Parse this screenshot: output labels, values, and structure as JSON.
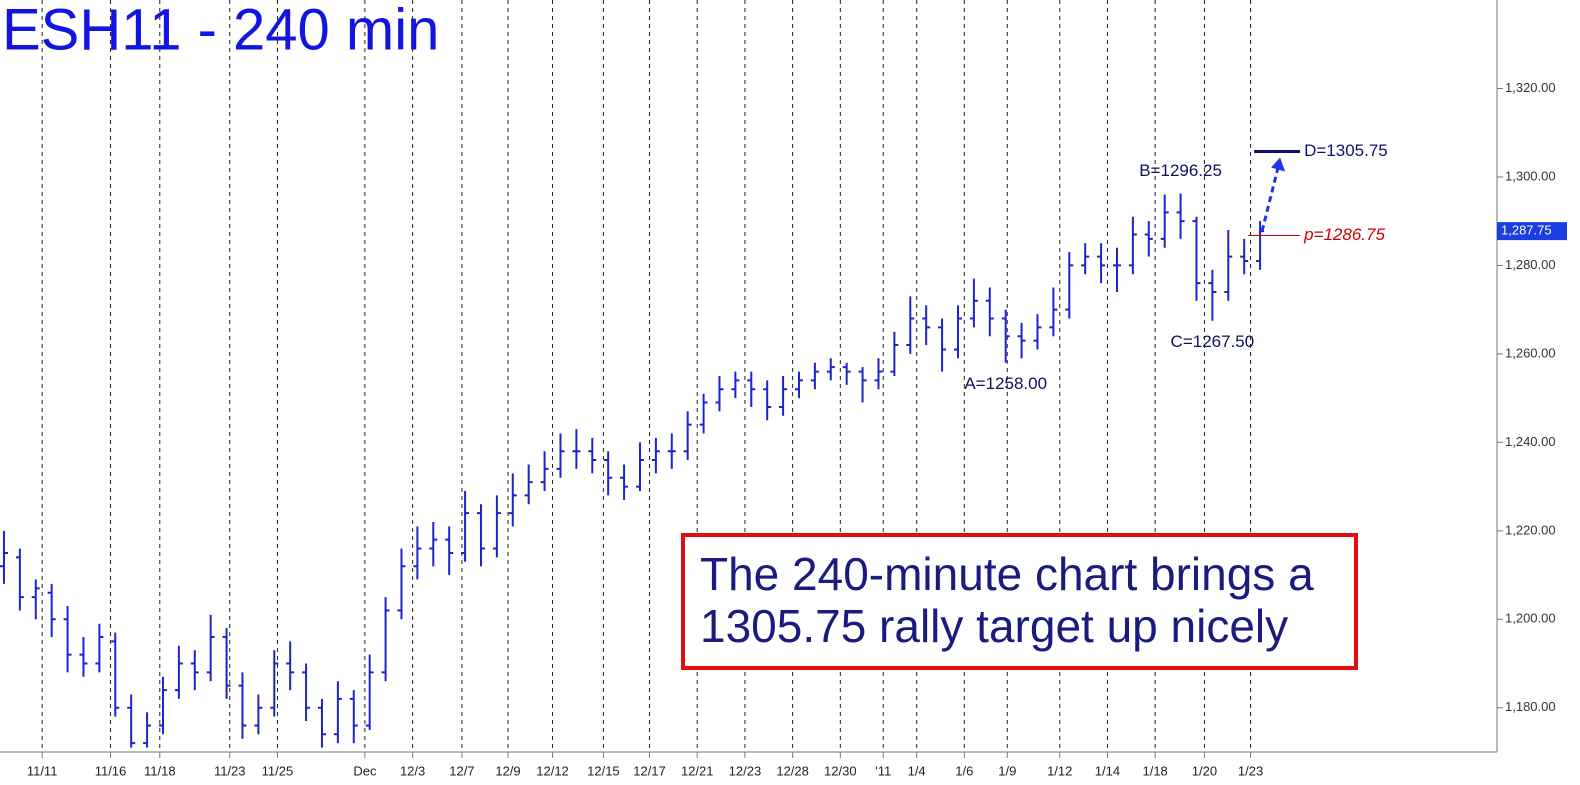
{
  "chart_data": {
    "type": "ohlc",
    "title": "ESH11 - 240 min",
    "color": "#2222cc",
    "open": [
      1212,
      1214,
      1205,
      1206,
      1200,
      1192,
      1190,
      1195,
      1180,
      1172,
      1176,
      1184,
      1190,
      1188,
      1196,
      1185,
      1176,
      1180,
      1190,
      1188,
      1180,
      1174,
      1182,
      1176,
      1188,
      1202,
      1212,
      1216,
      1218,
      1215,
      1224,
      1216,
      1224,
      1228,
      1231,
      1234,
      1238,
      1238,
      1236,
      1232,
      1230,
      1236,
      1238,
      1238,
      1244,
      1249,
      1252,
      1254,
      1252,
      1248,
      1252,
      1254,
      1256,
      1257,
      1256,
      1254,
      1256,
      1262,
      1268,
      1266,
      1261,
      1268,
      1272,
      1268,
      1264,
      1263,
      1266,
      1270,
      1280,
      1282,
      1280,
      1280,
      1287,
      1286,
      1292,
      1290,
      1276,
      1274,
      1282,
      1281
    ],
    "high": [
      1220,
      1216,
      1209,
      1208,
      1203,
      1196,
      1199,
      1197,
      1183,
      1179,
      1187,
      1194,
      1193,
      1201,
      1198,
      1188,
      1183,
      1193,
      1195,
      1190,
      1182,
      1186,
      1184,
      1192,
      1205,
      1216,
      1221,
      1222,
      1221,
      1229,
      1226,
      1228,
      1233,
      1235,
      1238,
      1242,
      1243,
      1241,
      1238,
      1235,
      1240,
      1241,
      1242,
      1247,
      1251,
      1255,
      1256,
      1256,
      1254,
      1255,
      1256,
      1258,
      1259,
      1258,
      1257,
      1259,
      1265,
      1273,
      1271,
      1268,
      1271,
      1277,
      1275,
      1270,
      1267,
      1269,
      1275,
      1283,
      1285,
      1285,
      1284,
      1291,
      1290,
      1296,
      1296.25,
      1291,
      1279,
      1288,
      1286,
      1290
    ],
    "low": [
      1208,
      1202,
      1200,
      1196,
      1188,
      1187,
      1188,
      1178,
      1171,
      1171,
      1174,
      1182,
      1184,
      1186,
      1182,
      1173,
      1174,
      1178,
      1184,
      1177,
      1171,
      1172,
      1172,
      1175,
      1186,
      1200,
      1209,
      1212,
      1210,
      1213,
      1212,
      1214,
      1221,
      1226,
      1229,
      1232,
      1234,
      1233,
      1228,
      1227,
      1229,
      1233,
      1234,
      1236,
      1242,
      1247,
      1250,
      1248,
      1245,
      1246,
      1250,
      1252,
      1254,
      1253,
      1249,
      1252,
      1255,
      1260,
      1262,
      1256,
      1259,
      1266,
      1264,
      1258,
      1259,
      1261,
      1264,
      1268,
      1278,
      1276,
      1274,
      1278,
      1282,
      1284,
      1286,
      1272,
      1267.5,
      1272,
      1278,
      1279
    ],
    "close": [
      1215,
      1205,
      1207,
      1200,
      1192,
      1190,
      1196,
      1180,
      1172,
      1176,
      1184,
      1190,
      1188,
      1196,
      1185,
      1176,
      1180,
      1190,
      1188,
      1180,
      1174,
      1182,
      1176,
      1188,
      1202,
      1212,
      1216,
      1218,
      1215,
      1224,
      1216,
      1224,
      1228,
      1231,
      1234,
      1238,
      1238,
      1236,
      1232,
      1230,
      1236,
      1238,
      1238,
      1244,
      1249,
      1252,
      1254,
      1252,
      1248,
      1252,
      1254,
      1256,
      1257,
      1256,
      1254,
      1256,
      1262,
      1268,
      1266,
      1261,
      1268,
      1272,
      1268,
      1264,
      1263,
      1266,
      1270,
      1280,
      1282,
      1280,
      1280,
      1287,
      1286,
      1292,
      1290,
      1276,
      1274,
      1282,
      1281,
      1287.75
    ],
    "xlim": [
      -0.25,
      93.9
    ],
    "xticks": [
      {
        "value": 2.4,
        "label": "11/11"
      },
      {
        "value": 6.7,
        "label": "11/16"
      },
      {
        "value": 9.8,
        "label": "11/18"
      },
      {
        "value": 14.2,
        "label": "11/23"
      },
      {
        "value": 17.2,
        "label": "11/25"
      },
      {
        "value": 22.7,
        "label": "Dec"
      },
      {
        "value": 25.7,
        "label": "12/3"
      },
      {
        "value": 28.8,
        "label": "12/7"
      },
      {
        "value": 31.7,
        "label": "12/9"
      },
      {
        "value": 34.5,
        "label": "12/12"
      },
      {
        "value": 37.7,
        "label": "12/15"
      },
      {
        "value": 40.6,
        "label": "12/17"
      },
      {
        "value": 43.6,
        "label": "12/21"
      },
      {
        "value": 46.6,
        "label": "12/23"
      },
      {
        "value": 49.6,
        "label": "12/28"
      },
      {
        "value": 52.6,
        "label": "12/30"
      },
      {
        "value": 55.3,
        "label": "'11"
      },
      {
        "value": 57.4,
        "label": "1/4"
      },
      {
        "value": 60.4,
        "label": "1/6"
      },
      {
        "value": 63.1,
        "label": "1/9"
      },
      {
        "value": 66.4,
        "label": "1/12"
      },
      {
        "value": 69.4,
        "label": "1/14"
      },
      {
        "value": 72.4,
        "label": "1/18"
      },
      {
        "value": 75.5,
        "label": "1/20"
      },
      {
        "value": 78.4,
        "label": "1/23"
      }
    ],
    "ylim": [
      1170,
      1340
    ],
    "yticks": [
      {
        "value": 1180,
        "label": "1,180.00"
      },
      {
        "value": 1200,
        "label": "1,200.00"
      },
      {
        "value": 1220,
        "label": "1,220.00"
      },
      {
        "value": 1240,
        "label": "1,240.00"
      },
      {
        "value": 1260,
        "label": "1,260.00"
      },
      {
        "value": 1280,
        "label": "1,280.00"
      },
      {
        "value": 1300,
        "label": "1,300.00"
      },
      {
        "value": 1320,
        "label": "1,320.00"
      }
    ],
    "last_price": {
      "value": 1287.75,
      "label": "1,287.75"
    },
    "points": [
      {
        "label": "B=1296.25",
        "bar": 74,
        "value": 1296.25,
        "anchor": "above"
      },
      {
        "label": "A=1258.00",
        "bar": 63,
        "value": 1258,
        "anchor": "below"
      },
      {
        "label": "C=1267.50",
        "bar": 76,
        "value": 1267.5,
        "anchor": "below"
      }
    ],
    "levels": [
      {
        "label": "D=1305.75",
        "value": 1305.75,
        "color": "#101070"
      },
      {
        "label": "p=1286.75",
        "value": 1286.75,
        "color": "#cc0000"
      }
    ],
    "note": [
      "The 240-minute chart brings a",
      "1305.75 rally target up nicely"
    ]
  }
}
